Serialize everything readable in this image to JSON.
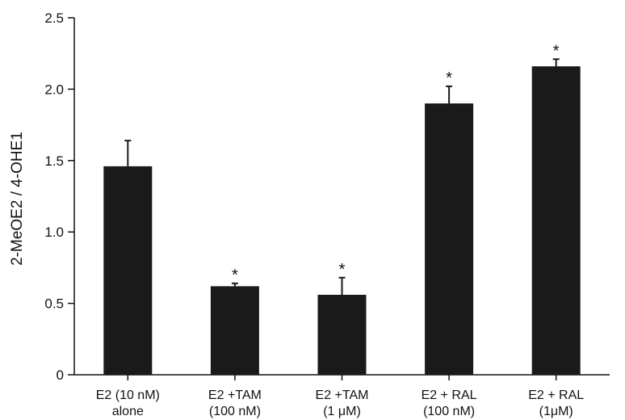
{
  "chart_data": {
    "type": "bar",
    "title": "",
    "xlabel": "",
    "ylabel": "2-MeOE2 / 4-OHE1",
    "ylim": [
      0,
      2.5
    ],
    "yticks": [
      "0",
      "0.5",
      "1.0",
      "1.5",
      "2.0",
      "2.5"
    ],
    "ytick_values": [
      0,
      0.5,
      1.0,
      1.5,
      2.0,
      2.5
    ],
    "categories": [
      [
        "E2 (10 nM)",
        "alone"
      ],
      [
        "E2 +TAM",
        "(100 nM)"
      ],
      [
        "E2 +TAM",
        "(1 μM)"
      ],
      [
        "E2 + RAL",
        "(100 nM)"
      ],
      [
        "E2 + RAL",
        "(1μM)"
      ]
    ],
    "values": [
      1.46,
      0.62,
      0.56,
      1.9,
      2.16
    ],
    "errors": [
      0.18,
      0.02,
      0.12,
      0.12,
      0.05
    ],
    "significance": [
      "",
      "*",
      "*",
      "*",
      "*"
    ],
    "bar_color": "#1a1a1a",
    "grid": false,
    "legend": "none"
  }
}
